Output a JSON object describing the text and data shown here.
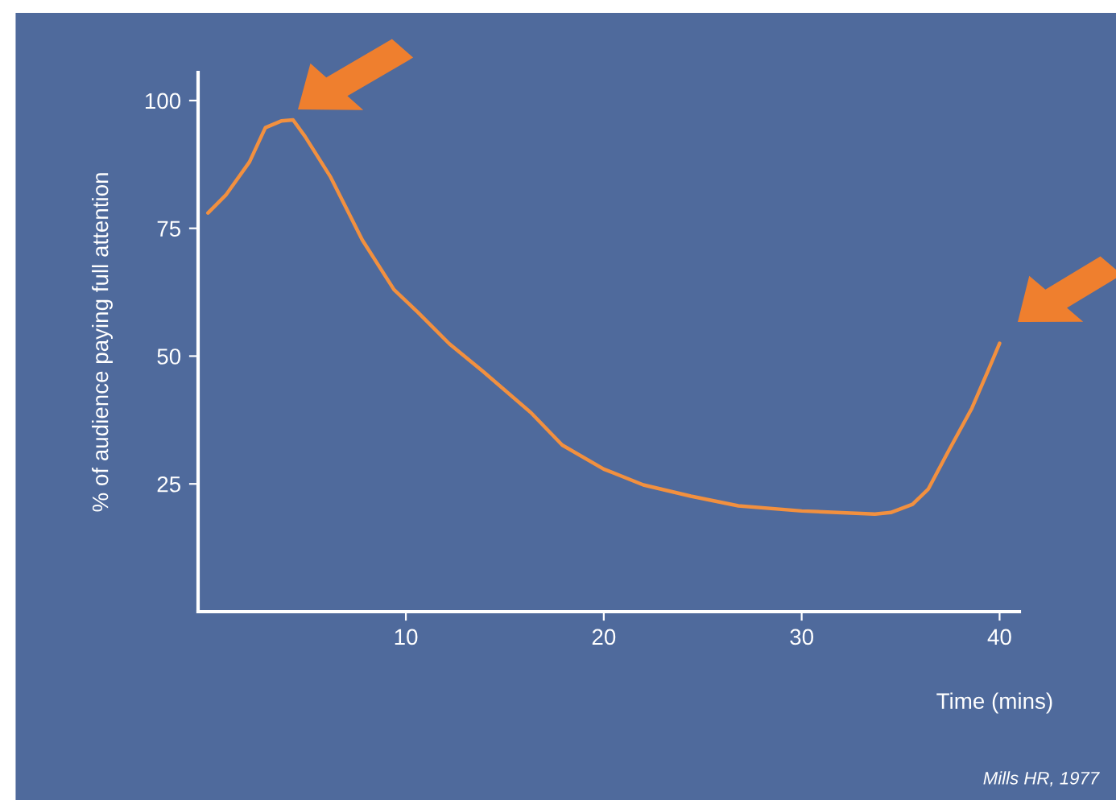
{
  "chart_data": {
    "type": "line",
    "xlabel": "Time (mins)",
    "ylabel": "% of audience paying full attention",
    "xlim": [
      -0.5,
      41
    ],
    "ylim": [
      0,
      105.5
    ],
    "xticks": [
      10,
      20,
      30,
      40
    ],
    "yticks": [
      25,
      50,
      75,
      100
    ],
    "grid": false,
    "legend": false,
    "marker": "none",
    "line_style": "solid",
    "series": [
      {
        "color": "#f2903f",
        "x": [
          0,
          0.9,
          2.1,
          2.9,
          3.7,
          4.3,
          4.9,
          6.2,
          7.8,
          9.4,
          10.6,
          12.2,
          13.9,
          16.3,
          17.9,
          20,
          22,
          24.4,
          26.8,
          30,
          33.7,
          34.5,
          35.6,
          36.4,
          37.4,
          38.6,
          39.4,
          40
        ],
        "values": [
          78,
          81.5,
          88,
          94.7,
          96,
          96.2,
          93,
          85,
          72.7,
          63,
          58.6,
          52.4,
          47,
          39,
          32.6,
          27.9,
          24.8,
          22.6,
          20.7,
          19.7,
          19.1,
          19.4,
          21,
          24,
          31.3,
          39.8,
          47,
          52.5
        ]
      }
    ],
    "annotations": [
      "Mills HR, 1977"
    ]
  }
}
